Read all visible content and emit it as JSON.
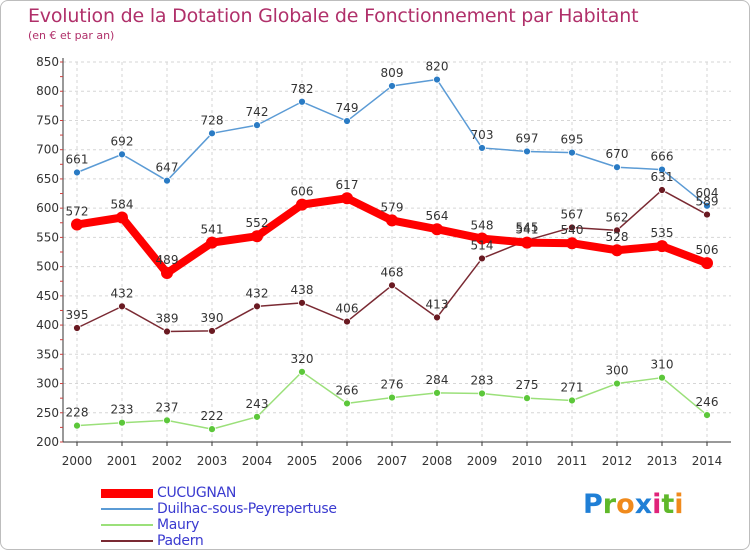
{
  "header": {
    "title": "Evolution de la Dotation Globale de Fonctionnement par Habitant",
    "subtitle": "(en € et par an)"
  },
  "logo": {
    "text": "Proxiti",
    "letters": [
      {
        "ch": "P",
        "color": "#1f7fd6"
      },
      {
        "ch": "r",
        "color": "#5fb82a"
      },
      {
        "ch": "o",
        "color": "#f08a1c"
      },
      {
        "ch": "x",
        "color": "#1f7fd6"
      },
      {
        "ch": "i",
        "color": "#e0237a"
      },
      {
        "ch": "t",
        "color": "#5fb82a"
      },
      {
        "ch": "i",
        "color": "#f08a1c"
      }
    ]
  },
  "chart_data": {
    "type": "line",
    "title": "Evolution de la Dotation Globale de Fonctionnement par Habitant",
    "subtitle": "(en € et par an)",
    "x": [
      "2000",
      "2001",
      "2002",
      "2003",
      "2004",
      "2005",
      "2006",
      "2007",
      "2008",
      "2009",
      "2010",
      "2011",
      "2012",
      "2013",
      "2014"
    ],
    "ylim": [
      200,
      850
    ],
    "yticks": [
      200,
      250,
      300,
      350,
      400,
      450,
      500,
      550,
      600,
      650,
      700,
      750,
      800,
      850
    ],
    "grid": true,
    "legend_position": "bottom-left",
    "series": [
      {
        "name": "Duilhac-sous-Peyrepertuse",
        "color": "#5b9bd5",
        "marker": "#2a7bc4",
        "values": [
          661,
          692,
          647,
          728,
          742,
          782,
          749,
          809,
          820,
          703,
          697,
          695,
          670,
          666,
          604
        ]
      },
      {
        "name": "Maury",
        "color": "#9be07a",
        "marker": "#5cc73a",
        "values": [
          228,
          233,
          237,
          222,
          243,
          320,
          266,
          276,
          284,
          283,
          275,
          271,
          300,
          310,
          246
        ]
      },
      {
        "name": "Padern",
        "color": "#7a2a33",
        "marker": "#6a1a22",
        "values": [
          395,
          432,
          389,
          390,
          432,
          438,
          406,
          468,
          413,
          514,
          545,
          567,
          562,
          631,
          589
        ]
      },
      {
        "name": "CUCUGNAN",
        "color": "#ff0000",
        "marker": "#ff0000",
        "bold": true,
        "values": [
          572,
          584,
          489,
          541,
          552,
          606,
          617,
          579,
          564,
          548,
          541,
          540,
          528,
          535,
          506
        ]
      }
    ],
    "legend_order": [
      "CUCUGNAN",
      "Duilhac-sous-Peyrepertuse",
      "Maury",
      "Padern"
    ]
  }
}
